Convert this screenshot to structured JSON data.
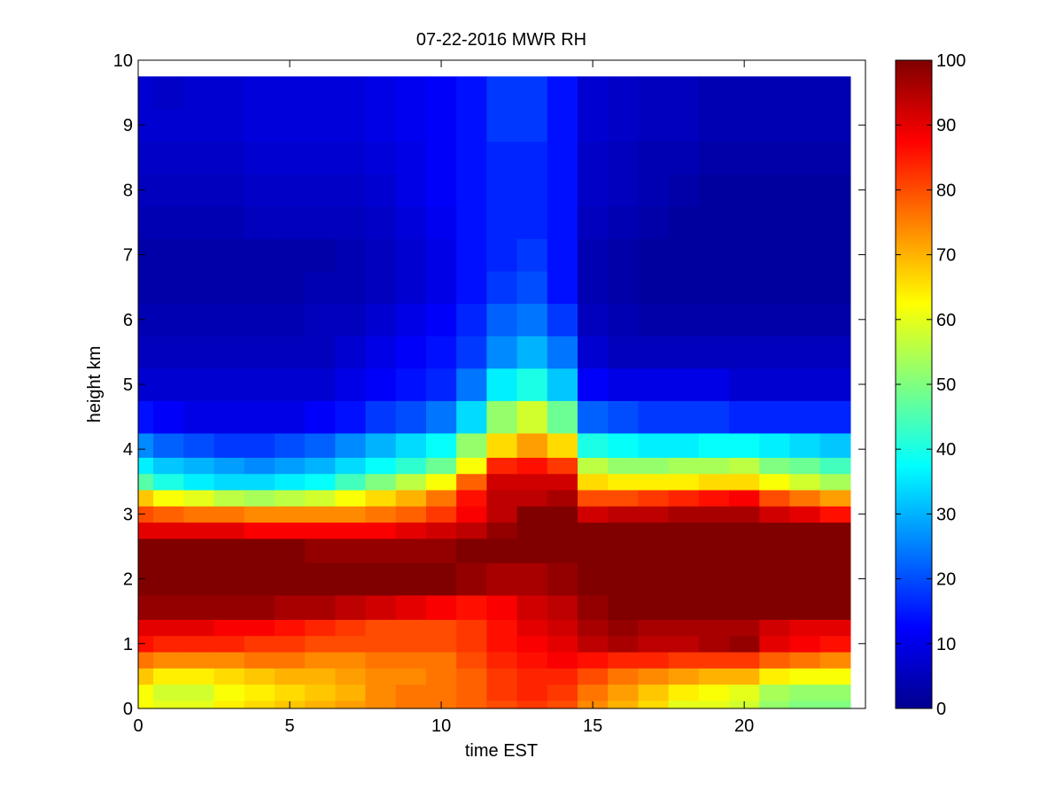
{
  "chart_data": {
    "type": "heatmap",
    "title": "07-22-2016 MWR RH",
    "xlabel": "time EST",
    "ylabel": "height km",
    "xlim": [
      0,
      24
    ],
    "ylim": [
      0,
      10
    ],
    "x_ticks": [
      "0",
      "5",
      "10",
      "15",
      "20"
    ],
    "y_ticks": [
      "0",
      "1",
      "2",
      "3",
      "4",
      "5",
      "6",
      "7",
      "8",
      "9",
      "10"
    ],
    "colorbar": {
      "colormap": "jet",
      "range": [
        0,
        100
      ],
      "ticks": [
        "0",
        "10",
        "20",
        "30",
        "40",
        "50",
        "60",
        "70",
        "80",
        "90",
        "100"
      ]
    },
    "time_hours": [
      0,
      1,
      2,
      3,
      4,
      5,
      6,
      7,
      8,
      9,
      10,
      11,
      12,
      13,
      14,
      15,
      16,
      17,
      18,
      19,
      20,
      21,
      22,
      23
    ],
    "height_km": [
      0,
      0.25,
      0.5,
      0.75,
      1.0,
      1.25,
      1.5,
      2.0,
      2.5,
      2.75,
      3.0,
      3.25,
      3.5,
      3.75,
      4.0,
      4.5,
      5.0,
      5.5,
      6.0,
      6.5,
      7.0,
      7.5,
      8.0,
      8.5,
      9.0,
      9.5
    ],
    "rh_percent": [
      [
        62,
        60,
        60,
        64,
        66,
        68,
        70,
        72,
        74,
        76,
        76,
        78,
        80,
        82,
        80,
        74,
        70,
        66,
        60,
        60,
        58,
        52,
        50,
        50
      ],
      [
        62,
        58,
        58,
        62,
        64,
        66,
        68,
        70,
        74,
        76,
        76,
        78,
        82,
        84,
        82,
        76,
        72,
        68,
        64,
        62,
        60,
        54,
        52,
        52
      ],
      [
        68,
        64,
        64,
        66,
        68,
        70,
        70,
        72,
        74,
        74,
        76,
        78,
        82,
        84,
        84,
        80,
        76,
        74,
        72,
        70,
        70,
        64,
        62,
        62
      ],
      [
        76,
        74,
        74,
        74,
        76,
        76,
        74,
        74,
        76,
        76,
        76,
        80,
        84,
        86,
        88,
        86,
        84,
        84,
        82,
        82,
        82,
        78,
        76,
        74
      ],
      [
        86,
        84,
        84,
        84,
        82,
        82,
        80,
        80,
        80,
        80,
        80,
        82,
        86,
        88,
        90,
        94,
        96,
        94,
        94,
        96,
        98,
        90,
        88,
        86
      ],
      [
        90,
        90,
        90,
        88,
        88,
        86,
        84,
        82,
        80,
        80,
        80,
        82,
        86,
        90,
        92,
        96,
        98,
        96,
        96,
        96,
        96,
        92,
        90,
        90
      ],
      [
        98,
        98,
        98,
        98,
        98,
        96,
        96,
        94,
        92,
        90,
        88,
        86,
        88,
        92,
        94,
        98,
        100,
        100,
        100,
        100,
        100,
        100,
        100,
        100
      ],
      [
        100,
        100,
        100,
        100,
        100,
        100,
        100,
        100,
        100,
        100,
        100,
        98,
        96,
        96,
        98,
        100,
        100,
        100,
        100,
        100,
        100,
        100,
        100,
        100
      ],
      [
        100,
        100,
        100,
        100,
        100,
        100,
        98,
        98,
        98,
        98,
        98,
        100,
        100,
        100,
        100,
        100,
        100,
        100,
        100,
        100,
        100,
        100,
        100,
        100
      ],
      [
        90,
        90,
        90,
        90,
        88,
        88,
        88,
        88,
        88,
        90,
        92,
        94,
        98,
        100,
        100,
        100,
        100,
        100,
        100,
        100,
        100,
        100,
        100,
        100
      ],
      [
        80,
        78,
        76,
        76,
        74,
        74,
        74,
        74,
        76,
        78,
        82,
        88,
        94,
        100,
        100,
        92,
        94,
        94,
        96,
        96,
        96,
        92,
        90,
        86
      ],
      [
        68,
        62,
        60,
        56,
        54,
        56,
        58,
        62,
        66,
        70,
        76,
        86,
        94,
        94,
        96,
        80,
        80,
        82,
        84,
        86,
        88,
        80,
        76,
        72
      ],
      [
        46,
        40,
        36,
        34,
        34,
        36,
        38,
        44,
        50,
        56,
        62,
        78,
        92,
        92,
        92,
        66,
        64,
        64,
        64,
        66,
        66,
        62,
        58,
        54
      ],
      [
        36,
        32,
        30,
        28,
        26,
        28,
        30,
        34,
        38,
        42,
        48,
        62,
        84,
        86,
        82,
        56,
        52,
        52,
        54,
        54,
        56,
        50,
        48,
        44
      ],
      [
        26,
        22,
        20,
        18,
        18,
        20,
        22,
        26,
        30,
        34,
        38,
        52,
        66,
        72,
        66,
        40,
        38,
        36,
        36,
        38,
        38,
        36,
        34,
        32
      ],
      [
        14,
        12,
        10,
        10,
        10,
        10,
        12,
        14,
        18,
        20,
        24,
        34,
        52,
        58,
        48,
        22,
        20,
        18,
        18,
        18,
        16,
        16,
        16,
        16
      ],
      [
        8,
        8,
        8,
        8,
        8,
        8,
        8,
        10,
        12,
        14,
        16,
        24,
        36,
        40,
        32,
        12,
        10,
        10,
        10,
        10,
        8,
        8,
        8,
        8
      ],
      [
        6,
        6,
        6,
        6,
        6,
        6,
        6,
        8,
        10,
        12,
        14,
        18,
        26,
        30,
        24,
        8,
        6,
        6,
        6,
        6,
        6,
        6,
        6,
        6
      ],
      [
        5,
        5,
        5,
        5,
        5,
        5,
        6,
        6,
        8,
        10,
        12,
        16,
        22,
        24,
        18,
        6,
        5,
        4,
        4,
        4,
        4,
        4,
        4,
        4
      ],
      [
        4,
        4,
        4,
        4,
        4,
        4,
        5,
        5,
        6,
        8,
        10,
        14,
        18,
        20,
        14,
        5,
        4,
        3,
        3,
        3,
        3,
        3,
        3,
        3
      ],
      [
        4,
        4,
        4,
        4,
        4,
        4,
        4,
        5,
        6,
        8,
        10,
        14,
        16,
        18,
        14,
        5,
        4,
        3,
        3,
        3,
        3,
        3,
        3,
        3
      ],
      [
        5,
        5,
        5,
        5,
        6,
        6,
        6,
        6,
        7,
        9,
        11,
        14,
        16,
        16,
        14,
        6,
        5,
        4,
        3,
        3,
        3,
        3,
        3,
        3
      ],
      [
        6,
        6,
        6,
        6,
        7,
        7,
        7,
        7,
        8,
        10,
        12,
        14,
        16,
        16,
        14,
        7,
        6,
        5,
        4,
        3,
        3,
        3,
        3,
        3
      ],
      [
        7,
        7,
        7,
        7,
        8,
        8,
        8,
        8,
        9,
        10,
        12,
        14,
        16,
        16,
        14,
        7,
        6,
        5,
        5,
        4,
        4,
        4,
        4,
        4
      ],
      [
        8,
        8,
        8,
        8,
        9,
        9,
        9,
        9,
        10,
        11,
        12,
        14,
        18,
        18,
        14,
        8,
        7,
        6,
        6,
        5,
        5,
        5,
        5,
        5
      ],
      [
        8,
        7,
        8,
        8,
        9,
        9,
        9,
        9,
        10,
        11,
        12,
        14,
        18,
        18,
        14,
        8,
        7,
        6,
        6,
        5,
        5,
        5,
        5,
        5
      ]
    ]
  }
}
